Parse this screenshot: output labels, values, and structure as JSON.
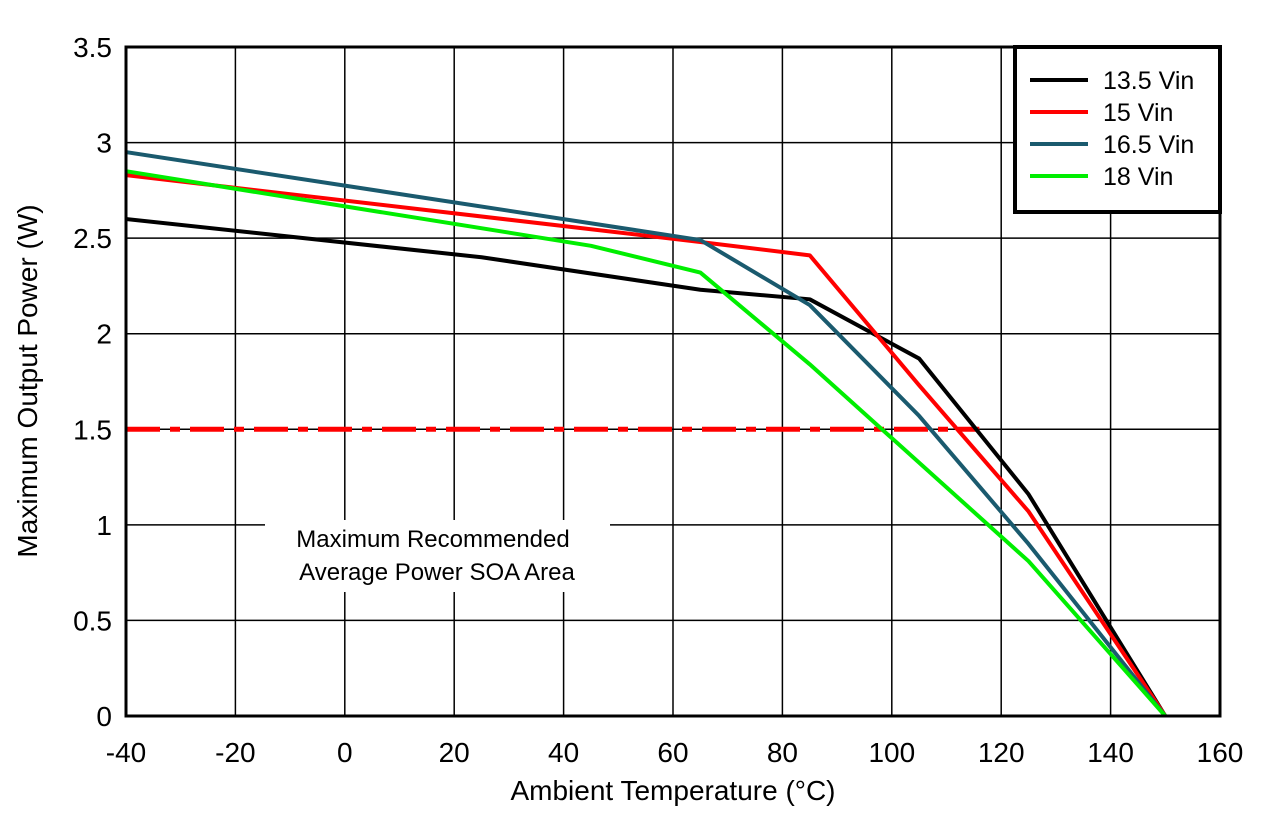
{
  "chart_data": {
    "type": "line",
    "xlabel": "Ambient Temperature (°C)",
    "xlabel_parts": {
      "prefix": "Ambient Temperature (",
      "sup": "o",
      "suffix": "C)"
    },
    "ylabel": "Maximum Output Power (W)",
    "xlim": [
      -40,
      160
    ],
    "ylim": [
      0,
      3.5
    ],
    "xticks": [
      -40,
      -20,
      0,
      20,
      40,
      60,
      80,
      100,
      120,
      140,
      160
    ],
    "yticks": [
      0,
      0.5,
      1,
      1.5,
      2,
      2.5,
      3,
      3.5
    ],
    "grid": true,
    "legend_position": "top-right",
    "series": [
      {
        "name": "13.5 Vin",
        "color": "#000000",
        "x": [
          -40,
          25,
          65,
          85,
          105,
          125,
          150
        ],
        "y": [
          2.6,
          2.4,
          2.23,
          2.18,
          1.87,
          1.16,
          0
        ]
      },
      {
        "name": "15 Vin",
        "color": "#ff0000",
        "x": [
          -40,
          65,
          85,
          105,
          125,
          150
        ],
        "y": [
          2.83,
          2.48,
          2.41,
          1.73,
          1.07,
          0
        ]
      },
      {
        "name": "16.5 Vin",
        "color": "#1a5a6e",
        "x": [
          -40,
          65,
          85,
          105,
          125,
          150
        ],
        "y": [
          2.95,
          2.49,
          2.15,
          1.57,
          0.9,
          0
        ]
      },
      {
        "name": "18 Vin",
        "color": "#00ee00",
        "x": [
          -40,
          45,
          65,
          85,
          125,
          150
        ],
        "y": [
          2.85,
          2.46,
          2.32,
          1.84,
          0.81,
          0
        ]
      }
    ],
    "reference_line": {
      "y": 1.5,
      "x_start": -40,
      "x_end": 116,
      "color": "#ff0000",
      "style": "dash-dot"
    },
    "annotation": {
      "lines": [
        "Maximum Recommended",
        "Average Power SOA Area"
      ],
      "x": 10,
      "y": 1.0
    }
  }
}
